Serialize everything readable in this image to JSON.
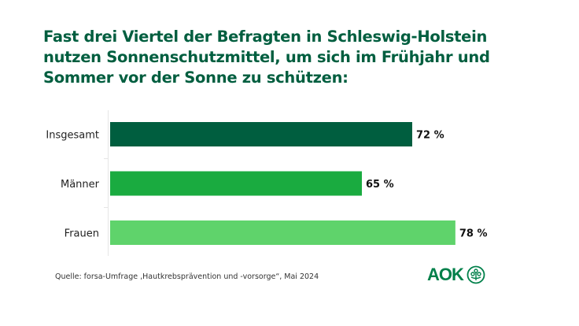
{
  "chart_data": {
    "type": "bar",
    "orientation": "horizontal",
    "title": "Fast drei Viertel der Befragten in Schleswig-Holstein nutzen Sonnenschutzmittel, um sich im Frühjahr und Sommer vor der Sonne zu schützen:",
    "title_lines": [
      "Fast drei Viertel der Befragten in Schleswig-Holstein",
      "nutzen Sonnenschutzmittel, um sich im Frühjahr und",
      "Sommer vor der Sonne zu schützen:"
    ],
    "categories": [
      "Insgesamt",
      "Männer",
      "Frauen"
    ],
    "values": [
      72,
      65,
      78
    ],
    "value_labels": [
      "72 %",
      "65 %",
      "78 %"
    ],
    "colors": [
      "#005e3f",
      "#1aab40",
      "#5fd36b"
    ],
    "xlabel": "",
    "ylabel": "",
    "xlim": [
      30,
      100
    ],
    "unit": "%",
    "grid": false,
    "legend": "none"
  },
  "footer": {
    "source": "Quelle: forsa-Umfrage ‚Hautkrebsprävention und -vorsorge“, Mai 2024",
    "logo_text": "AOK"
  }
}
